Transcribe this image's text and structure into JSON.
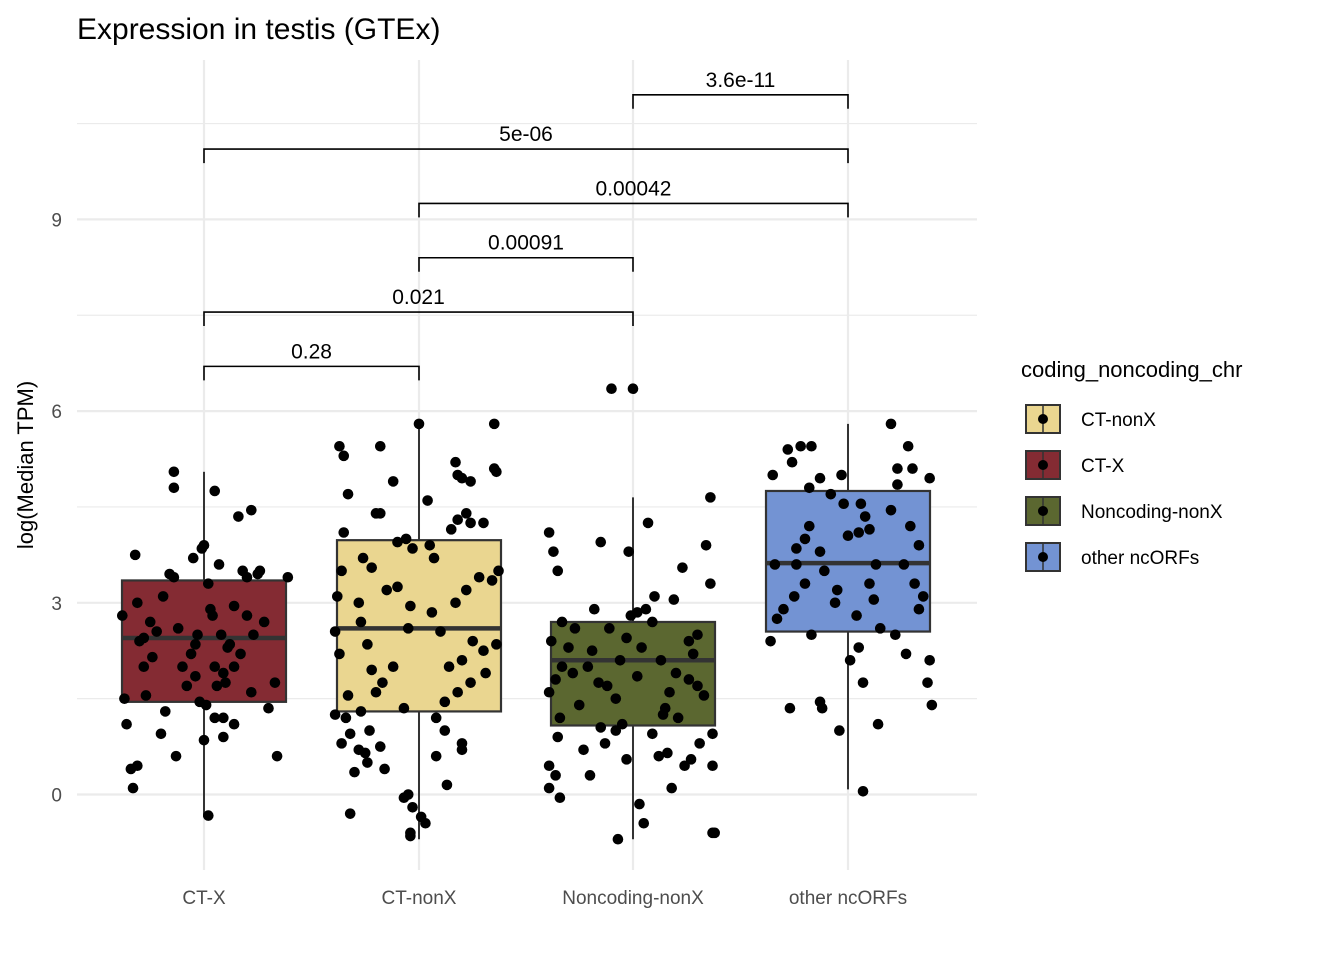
{
  "chart_data": {
    "type": "box",
    "title": "Expression in testis (GTEx)",
    "xlabel": "",
    "ylabel": "log(Median TPM)",
    "ylim": [
      -1.15,
      11.3
    ],
    "yticks": [
      0,
      3,
      6,
      9
    ],
    "grid": true,
    "legend_title": "coding_noncoding_chr",
    "legend_placement": "right",
    "legend": [
      {
        "name": "CT-nonX",
        "color": "#EAD690"
      },
      {
        "name": "CT-X",
        "color": "#842B33"
      },
      {
        "name": "Noncoding-nonX",
        "color": "#5B6730"
      },
      {
        "name": "other ncORFs",
        "color": "#7393D3"
      }
    ],
    "categories": [
      "CT-X",
      "CT-nonX",
      "Noncoding-nonX",
      "other ncORFs"
    ],
    "boxes": [
      {
        "category": "CT-X",
        "color": "#842B33",
        "q1": 1.45,
        "median": 2.45,
        "q3": 3.35,
        "whisker_low": -0.35,
        "whisker_high": 5.05
      },
      {
        "category": "CT-nonX",
        "color": "#EAD690",
        "q1": 1.3,
        "median": 2.6,
        "q3": 3.98,
        "whisker_low": -0.7,
        "whisker_high": 5.8
      },
      {
        "category": "Noncoding-nonX",
        "color": "#5B6730",
        "q1": 1.08,
        "median": 2.1,
        "q3": 2.7,
        "whisker_low": -0.7,
        "whisker_high": 4.65
      },
      {
        "category": "other ncORFs",
        "color": "#7393D3",
        "q1": 2.55,
        "median": 3.62,
        "q3": 4.75,
        "whisker_low": 0.08,
        "whisker_high": 5.8
      }
    ],
    "points": [
      [
        [
          3.0,
          -0.31
        ],
        [
          2.8,
          -0.38
        ],
        [
          1.5,
          -0.37
        ],
        [
          1.1,
          -0.36
        ],
        [
          0.4,
          -0.34
        ],
        [
          0.1,
          -0.33
        ],
        [
          3.75,
          -0.32
        ],
        [
          2.4,
          -0.3
        ],
        [
          2.0,
          -0.28
        ],
        [
          1.55,
          -0.27
        ],
        [
          2.7,
          -0.25
        ],
        [
          2.55,
          -0.22
        ],
        [
          3.1,
          -0.19
        ],
        [
          0.45,
          -0.31
        ],
        [
          2.15,
          -0.24
        ],
        [
          0.95,
          -0.2
        ],
        [
          1.3,
          -0.18
        ],
        [
          3.45,
          -0.16
        ],
        [
          3.4,
          -0.14
        ],
        [
          2.6,
          -0.12
        ],
        [
          2.0,
          -0.1
        ],
        [
          1.7,
          -0.08
        ],
        [
          0.6,
          -0.13
        ],
        [
          3.7,
          -0.05
        ],
        [
          2.35,
          -0.04
        ],
        [
          2.5,
          -0.03
        ],
        [
          1.45,
          -0.02
        ],
        [
          1.4,
          0.01
        ],
        [
          3.3,
          0.02
        ],
        [
          2.8,
          0.04
        ],
        [
          2.0,
          0.05
        ],
        [
          1.7,
          0.06
        ],
        [
          3.6,
          0.07
        ],
        [
          2.2,
          -0.06
        ],
        [
          -0.33,
          0.02
        ],
        [
          0.85,
          0.0
        ],
        [
          3.9,
          0.0
        ],
        [
          2.9,
          0.03
        ],
        [
          2.5,
          0.08
        ],
        [
          1.2,
          0.09
        ],
        [
          1.75,
          0.1
        ],
        [
          2.35,
          0.12
        ],
        [
          2.95,
          0.14
        ],
        [
          1.9,
          0.09
        ],
        [
          4.75,
          0.05
        ],
        [
          2.3,
          0.11
        ],
        [
          2.0,
          0.14
        ],
        [
          4.35,
          0.16
        ],
        [
          4.45,
          0.22
        ],
        [
          3.5,
          0.18
        ],
        [
          3.4,
          0.2
        ],
        [
          0.9,
          0.09
        ],
        [
          1.1,
          0.14
        ],
        [
          2.8,
          0.2
        ],
        [
          1.6,
          0.22
        ],
        [
          3.45,
          0.25
        ],
        [
          3.5,
          0.26
        ],
        [
          1.35,
          0.3
        ],
        [
          1.75,
          0.33
        ],
        [
          0.6,
          0.34
        ],
        [
          3.4,
          0.39
        ],
        [
          2.5,
          0.23
        ],
        [
          2.2,
          0.17
        ],
        [
          5.05,
          -0.14
        ],
        [
          4.8,
          -0.14
        ],
        [
          3.85,
          -0.01
        ],
        [
          2.45,
          -0.28
        ],
        [
          1.85,
          -0.04
        ],
        [
          2.7,
          0.28
        ],
        [
          1.2,
          0.05
        ]
      ],
      [
        [
          5.45,
          -0.37
        ],
        [
          5.3,
          -0.35
        ],
        [
          4.7,
          -0.33
        ],
        [
          4.1,
          -0.35
        ],
        [
          3.5,
          -0.36
        ],
        [
          3.1,
          -0.38
        ],
        [
          2.55,
          -0.39
        ],
        [
          2.2,
          -0.37
        ],
        [
          1.55,
          -0.33
        ],
        [
          1.25,
          -0.39
        ],
        [
          1.2,
          -0.34
        ],
        [
          0.95,
          -0.32
        ],
        [
          0.8,
          -0.36
        ],
        [
          0.35,
          -0.3
        ],
        [
          -0.3,
          -0.32
        ],
        [
          5.45,
          -0.18
        ],
        [
          4.9,
          -0.12
        ],
        [
          4.4,
          -0.2
        ],
        [
          4.4,
          -0.18
        ],
        [
          3.95,
          -0.1
        ],
        [
          3.85,
          -0.03
        ],
        [
          3.7,
          -0.26
        ],
        [
          3.55,
          -0.22
        ],
        [
          3.2,
          -0.15
        ],
        [
          3.0,
          -0.28
        ],
        [
          2.7,
          -0.27
        ],
        [
          2.35,
          -0.24
        ],
        [
          1.95,
          -0.22
        ],
        [
          1.75,
          -0.17
        ],
        [
          1.6,
          -0.2
        ],
        [
          1.3,
          -0.27
        ],
        [
          1.0,
          -0.23
        ],
        [
          0.7,
          -0.28
        ],
        [
          0.65,
          -0.25
        ],
        [
          0.5,
          -0.24
        ],
        [
          0.4,
          -0.16
        ],
        [
          0.0,
          -0.05
        ],
        [
          -0.05,
          -0.07
        ],
        [
          -0.2,
          -0.03
        ],
        [
          -0.35,
          0.01
        ],
        [
          -0.45,
          0.03
        ],
        [
          -0.6,
          -0.04
        ],
        [
          0.15,
          0.13
        ],
        [
          0.6,
          0.08
        ],
        [
          0.8,
          0.2
        ],
        [
          1.2,
          0.08
        ],
        [
          1.45,
          0.12
        ],
        [
          1.6,
          0.18
        ],
        [
          1.75,
          0.24
        ],
        [
          2.0,
          0.14
        ],
        [
          2.1,
          0.2
        ],
        [
          2.25,
          0.3
        ],
        [
          2.35,
          0.36
        ],
        [
          2.55,
          0.1
        ],
        [
          2.85,
          0.06
        ],
        [
          3.0,
          0.17
        ],
        [
          3.2,
          0.22
        ],
        [
          3.4,
          0.28
        ],
        [
          3.35,
          0.34
        ],
        [
          3.5,
          0.37
        ],
        [
          3.9,
          0.05
        ],
        [
          4.15,
          0.15
        ],
        [
          4.3,
          0.18
        ],
        [
          4.4,
          0.22
        ],
        [
          4.6,
          0.04
        ],
        [
          4.9,
          0.24
        ],
        [
          5.05,
          0.36
        ],
        [
          5.1,
          0.35
        ],
        [
          5.2,
          0.17
        ],
        [
          5.8,
          0.0
        ],
        [
          5.8,
          0.35
        ],
        [
          4.0,
          -0.06
        ],
        [
          3.7,
          0.07
        ],
        [
          2.0,
          -0.12
        ],
        [
          1.0,
          0.12
        ],
        [
          -0.65,
          -0.04
        ],
        [
          2.6,
          -0.05
        ],
        [
          2.4,
          0.25
        ],
        [
          1.35,
          -0.07
        ],
        [
          0.7,
          0.2
        ],
        [
          4.25,
          0.24
        ],
        [
          4.95,
          0.2
        ],
        [
          3.25,
          -0.1
        ],
        [
          2.95,
          -0.04
        ],
        [
          1.9,
          0.31
        ],
        [
          0.75,
          -0.18
        ],
        [
          4.25,
          0.3
        ],
        [
          5.0,
          0.18
        ]
      ],
      [
        [
          4.1,
          -0.39
        ],
        [
          3.8,
          -0.37
        ],
        [
          3.5,
          -0.35
        ],
        [
          2.7,
          -0.33
        ],
        [
          2.4,
          -0.38
        ],
        [
          1.8,
          -0.36
        ],
        [
          1.6,
          -0.39
        ],
        [
          1.2,
          -0.34
        ],
        [
          0.9,
          -0.35
        ],
        [
          0.45,
          -0.39
        ],
        [
          0.3,
          -0.36
        ],
        [
          0.1,
          -0.39
        ],
        [
          -0.05,
          -0.34
        ],
        [
          2.6,
          -0.27
        ],
        [
          2.9,
          -0.18
        ],
        [
          2.6,
          -0.11
        ],
        [
          2.3,
          -0.3
        ],
        [
          2.0,
          -0.21
        ],
        [
          1.9,
          -0.28
        ],
        [
          1.75,
          -0.16
        ],
        [
          1.4,
          -0.25
        ],
        [
          1.05,
          -0.15
        ],
        [
          0.7,
          -0.23
        ],
        [
          0.3,
          -0.2
        ],
        [
          3.8,
          -0.02
        ],
        [
          3.95,
          -0.15
        ],
        [
          2.45,
          -0.03
        ],
        [
          2.1,
          -0.06
        ],
        [
          1.7,
          -0.12
        ],
        [
          1.5,
          -0.08
        ],
        [
          1.1,
          -0.05
        ],
        [
          0.8,
          -0.13
        ],
        [
          0.55,
          -0.03
        ],
        [
          -0.7,
          -0.07
        ],
        [
          -0.15,
          0.03
        ],
        [
          -0.45,
          0.05
        ],
        [
          0.6,
          0.12
        ],
        [
          0.95,
          0.09
        ],
        [
          1.25,
          0.14
        ],
        [
          1.6,
          0.17
        ],
        [
          1.9,
          0.2
        ],
        [
          2.1,
          0.13
        ],
        [
          2.4,
          0.26
        ],
        [
          2.5,
          0.3
        ],
        [
          2.9,
          0.06
        ],
        [
          3.1,
          0.1
        ],
        [
          3.55,
          0.23
        ],
        [
          3.3,
          0.36
        ],
        [
          3.9,
          0.34
        ],
        [
          4.65,
          0.36
        ],
        [
          4.25,
          0.07
        ],
        [
          0.45,
          0.24
        ],
        [
          0.55,
          0.27
        ],
        [
          0.8,
          0.31
        ],
        [
          0.95,
          0.37
        ],
        [
          0.45,
          0.37
        ],
        [
          -0.6,
          0.37
        ],
        [
          -0.6,
          0.38
        ],
        [
          1.7,
          0.3
        ],
        [
          2.8,
          -0.01
        ],
        [
          6.35,
          -0.1
        ],
        [
          6.35,
          0.0
        ],
        [
          2.3,
          0.04
        ],
        [
          1.85,
          0.02
        ],
        [
          1.35,
          0.15
        ],
        [
          2.25,
          -0.19
        ],
        [
          3.05,
          0.19
        ],
        [
          1.8,
          0.26
        ],
        [
          0.1,
          0.18
        ],
        [
          2.0,
          -0.33
        ],
        [
          1.55,
          0.33
        ],
        [
          1.2,
          0.21
        ],
        [
          2.7,
          0.09
        ],
        [
          2.85,
          0.02
        ],
        [
          2.2,
          0.28
        ],
        [
          1.0,
          -0.08
        ],
        [
          0.65,
          0.16
        ]
      ],
      [
        [
          2.4,
          -0.36
        ],
        [
          1.35,
          -0.27
        ],
        [
          2.9,
          -0.3
        ],
        [
          3.6,
          -0.34
        ],
        [
          3.6,
          -0.24
        ],
        [
          4.0,
          -0.2
        ],
        [
          4.2,
          -0.18
        ],
        [
          4.8,
          -0.18
        ],
        [
          5.2,
          -0.26
        ],
        [
          5.45,
          -0.22
        ],
        [
          5.45,
          -0.17
        ],
        [
          5.4,
          -0.28
        ],
        [
          3.8,
          -0.13
        ],
        [
          3.3,
          -0.2
        ],
        [
          3.1,
          -0.25
        ],
        [
          2.5,
          -0.17
        ],
        [
          1.45,
          -0.13
        ],
        [
          1.35,
          -0.12
        ],
        [
          3.0,
          -0.06
        ],
        [
          4.7,
          -0.08
        ],
        [
          5.0,
          -0.03
        ],
        [
          4.95,
          -0.13
        ],
        [
          4.55,
          -0.02
        ],
        [
          4.05,
          0.0
        ],
        [
          3.5,
          -0.11
        ],
        [
          3.2,
          -0.05
        ],
        [
          2.8,
          0.04
        ],
        [
          2.3,
          0.05
        ],
        [
          2.1,
          0.01
        ],
        [
          1.0,
          -0.04
        ],
        [
          1.75,
          0.07
        ],
        [
          4.1,
          0.05
        ],
        [
          4.35,
          0.08
        ],
        [
          3.6,
          0.13
        ],
        [
          3.3,
          0.1
        ],
        [
          3.05,
          0.12
        ],
        [
          2.6,
          0.15
        ],
        [
          1.1,
          0.14
        ],
        [
          0.05,
          0.07
        ],
        [
          5.8,
          0.2
        ],
        [
          5.45,
          0.28
        ],
        [
          5.1,
          0.23
        ],
        [
          5.1,
          0.3
        ],
        [
          4.85,
          0.23
        ],
        [
          4.45,
          0.2
        ],
        [
          4.2,
          0.29
        ],
        [
          3.9,
          0.33
        ],
        [
          3.6,
          0.26
        ],
        [
          3.3,
          0.31
        ],
        [
          3.1,
          0.35
        ],
        [
          2.9,
          0.33
        ],
        [
          2.5,
          0.22
        ],
        [
          2.2,
          0.27
        ],
        [
          2.1,
          0.38
        ],
        [
          1.75,
          0.37
        ],
        [
          1.4,
          0.39
        ],
        [
          4.95,
          0.38
        ],
        [
          5.0,
          -0.35
        ],
        [
          2.75,
          -0.33
        ],
        [
          4.15,
          0.1
        ],
        [
          3.85,
          -0.24
        ],
        [
          4.55,
          0.06
        ]
      ]
    ],
    "comparisons": [
      {
        "from": "CT-X",
        "to": "CT-nonX",
        "p": "0.28",
        "y": 6.7
      },
      {
        "from": "CT-X",
        "to": "Noncoding-nonX",
        "p": "0.021",
        "y": 7.55
      },
      {
        "from": "CT-nonX",
        "to": "Noncoding-nonX",
        "p": "0.00091",
        "y": 8.4
      },
      {
        "from": "CT-nonX",
        "to": "other ncORFs",
        "p": "0.00042",
        "y": 9.25
      },
      {
        "from": "CT-X",
        "to": "other ncORFs",
        "p": "5e-06",
        "y": 10.1
      },
      {
        "from": "Noncoding-nonX",
        "to": "other ncORFs",
        "p": "3.6e-11",
        "y": 10.95
      }
    ]
  }
}
